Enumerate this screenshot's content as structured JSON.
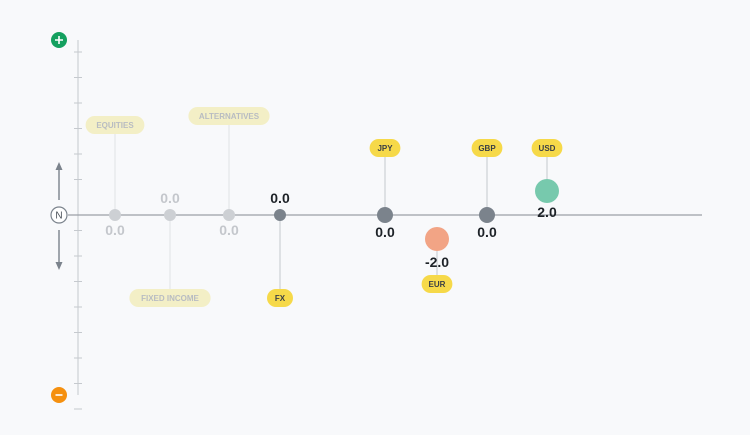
{
  "chart_data": {
    "type": "scatter",
    "title": "",
    "axis": {
      "top_symbol": "+",
      "top_color": "#14a05f",
      "center_label": "N",
      "bottom_symbol": "−",
      "bottom_color": "#f5900f"
    },
    "categories": [
      {
        "label": "EQUITIES",
        "value": 0.0,
        "value_label": "0.0",
        "faded": true,
        "label_side": "top",
        "color": "#cdd0d4",
        "emphasis": "none"
      },
      {
        "label": "FIXED INCOME",
        "value": 0.0,
        "value_label": "0.0",
        "faded": true,
        "label_side": "bottom",
        "color": "#cdd0d4",
        "emphasis": "none"
      },
      {
        "label": "ALTERNATIVES",
        "value": 0.0,
        "value_label": "0.0",
        "faded": true,
        "label_side": "top",
        "color": "#cdd0d4",
        "emphasis": "none"
      },
      {
        "label": "FX",
        "value": 0.0,
        "value_label": "0.0",
        "faded": false,
        "label_side": "bottom",
        "color": "#7b838c",
        "emphasis": "none"
      },
      {
        "label": "JPY",
        "value": 0.0,
        "value_label": "0.0",
        "faded": false,
        "label_side": "top",
        "color": "#7b838c",
        "emphasis": "none"
      },
      {
        "label": "EUR",
        "value": -2.0,
        "value_label": "-2.0",
        "faded": false,
        "label_side": "bottom",
        "color": "#f2a485",
        "emphasis": "negative"
      },
      {
        "label": "GBP",
        "value": 0.0,
        "value_label": "0.0",
        "faded": false,
        "label_side": "top",
        "color": "#7b838c",
        "emphasis": "none"
      },
      {
        "label": "USD",
        "value": 2.0,
        "value_label": "2.0",
        "faded": false,
        "label_side": "top",
        "color": "#77c9ad",
        "emphasis": "positive"
      }
    ],
    "colors": {
      "tag_active": "#f6d949",
      "tag_faded": "#f3efc6",
      "tag_text_active": "#3a3f45",
      "tag_text_faded": "#b8bcc2",
      "baseline": "#9aa0a6"
    }
  }
}
